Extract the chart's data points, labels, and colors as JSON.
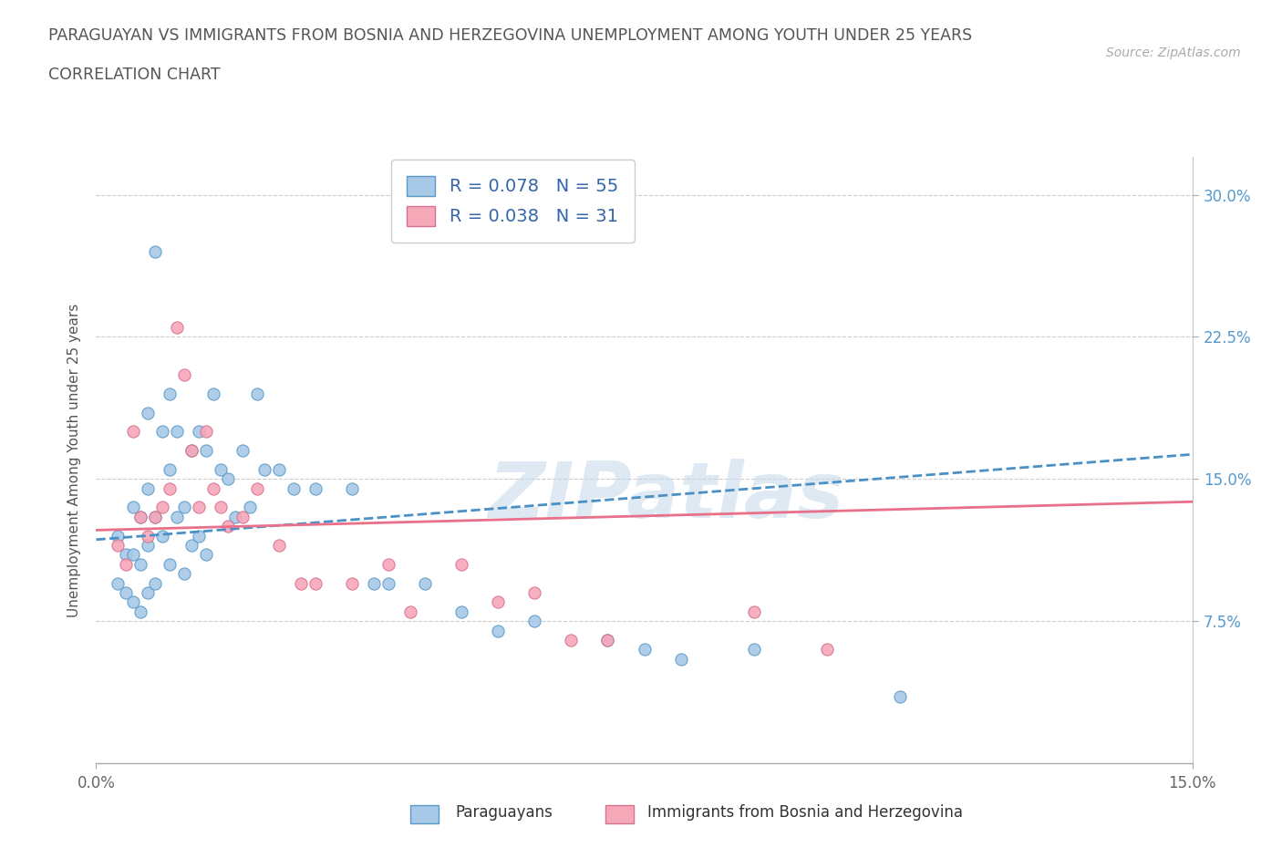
{
  "title_line1": "PARAGUAYAN VS IMMIGRANTS FROM BOSNIA AND HERZEGOVINA UNEMPLOYMENT AMONG YOUTH UNDER 25 YEARS",
  "title_line2": "CORRELATION CHART",
  "source_text": "Source: ZipAtlas.com",
  "ylabel": "Unemployment Among Youth under 25 years",
  "xlim": [
    0.0,
    0.15
  ],
  "ylim": [
    0.0,
    0.32
  ],
  "x_ticks": [
    0.0,
    0.15
  ],
  "x_tick_labels": [
    "0.0%",
    "15.0%"
  ],
  "y_ticks": [
    0.075,
    0.15,
    0.225,
    0.3
  ],
  "y_tick_labels": [
    "7.5%",
    "15.0%",
    "22.5%",
    "30.0%"
  ],
  "paraguayan_color": "#a8c8e8",
  "paraguayan_edge": "#5a9cc5",
  "immigrant_color": "#f5a8b8",
  "immigrant_edge": "#d97090",
  "trend_paraguayan_color": "#4a90c4",
  "trend_immigrant_color": "#e8708a",
  "legend_R1": "0.078",
  "legend_N1": "55",
  "legend_R2": "0.038",
  "legend_N2": "31",
  "watermark": "ZIPatlas",
  "paraguayan_x": [
    0.003,
    0.003,
    0.004,
    0.004,
    0.005,
    0.005,
    0.005,
    0.006,
    0.006,
    0.006,
    0.007,
    0.007,
    0.007,
    0.007,
    0.008,
    0.008,
    0.008,
    0.009,
    0.009,
    0.01,
    0.01,
    0.01,
    0.011,
    0.011,
    0.012,
    0.012,
    0.013,
    0.013,
    0.014,
    0.014,
    0.015,
    0.015,
    0.016,
    0.017,
    0.018,
    0.019,
    0.02,
    0.021,
    0.022,
    0.023,
    0.025,
    0.027,
    0.03,
    0.035,
    0.038,
    0.04,
    0.045,
    0.05,
    0.055,
    0.06,
    0.07,
    0.075,
    0.08,
    0.09,
    0.11
  ],
  "paraguayan_y": [
    0.12,
    0.095,
    0.11,
    0.09,
    0.135,
    0.11,
    0.085,
    0.13,
    0.105,
    0.08,
    0.185,
    0.145,
    0.115,
    0.09,
    0.27,
    0.13,
    0.095,
    0.175,
    0.12,
    0.195,
    0.155,
    0.105,
    0.175,
    0.13,
    0.135,
    0.1,
    0.165,
    0.115,
    0.175,
    0.12,
    0.165,
    0.11,
    0.195,
    0.155,
    0.15,
    0.13,
    0.165,
    0.135,
    0.195,
    0.155,
    0.155,
    0.145,
    0.145,
    0.145,
    0.095,
    0.095,
    0.095,
    0.08,
    0.07,
    0.075,
    0.065,
    0.06,
    0.055,
    0.06,
    0.035
  ],
  "immigrant_x": [
    0.003,
    0.004,
    0.005,
    0.006,
    0.007,
    0.008,
    0.009,
    0.01,
    0.011,
    0.012,
    0.013,
    0.014,
    0.015,
    0.016,
    0.017,
    0.018,
    0.02,
    0.022,
    0.025,
    0.028,
    0.03,
    0.035,
    0.04,
    0.043,
    0.05,
    0.055,
    0.06,
    0.065,
    0.07,
    0.09,
    0.1
  ],
  "immigrant_y": [
    0.115,
    0.105,
    0.175,
    0.13,
    0.12,
    0.13,
    0.135,
    0.145,
    0.23,
    0.205,
    0.165,
    0.135,
    0.175,
    0.145,
    0.135,
    0.125,
    0.13,
    0.145,
    0.115,
    0.095,
    0.095,
    0.095,
    0.105,
    0.08,
    0.105,
    0.085,
    0.09,
    0.065,
    0.065,
    0.08,
    0.06
  ],
  "background_color": "#ffffff",
  "grid_color": "#cccccc",
  "trend_p_x0": 0.0,
  "trend_p_x1": 0.15,
  "trend_p_y0": 0.118,
  "trend_p_y1": 0.163,
  "trend_i_x0": 0.0,
  "trend_i_x1": 0.15,
  "trend_i_y0": 0.123,
  "trend_i_y1": 0.138
}
